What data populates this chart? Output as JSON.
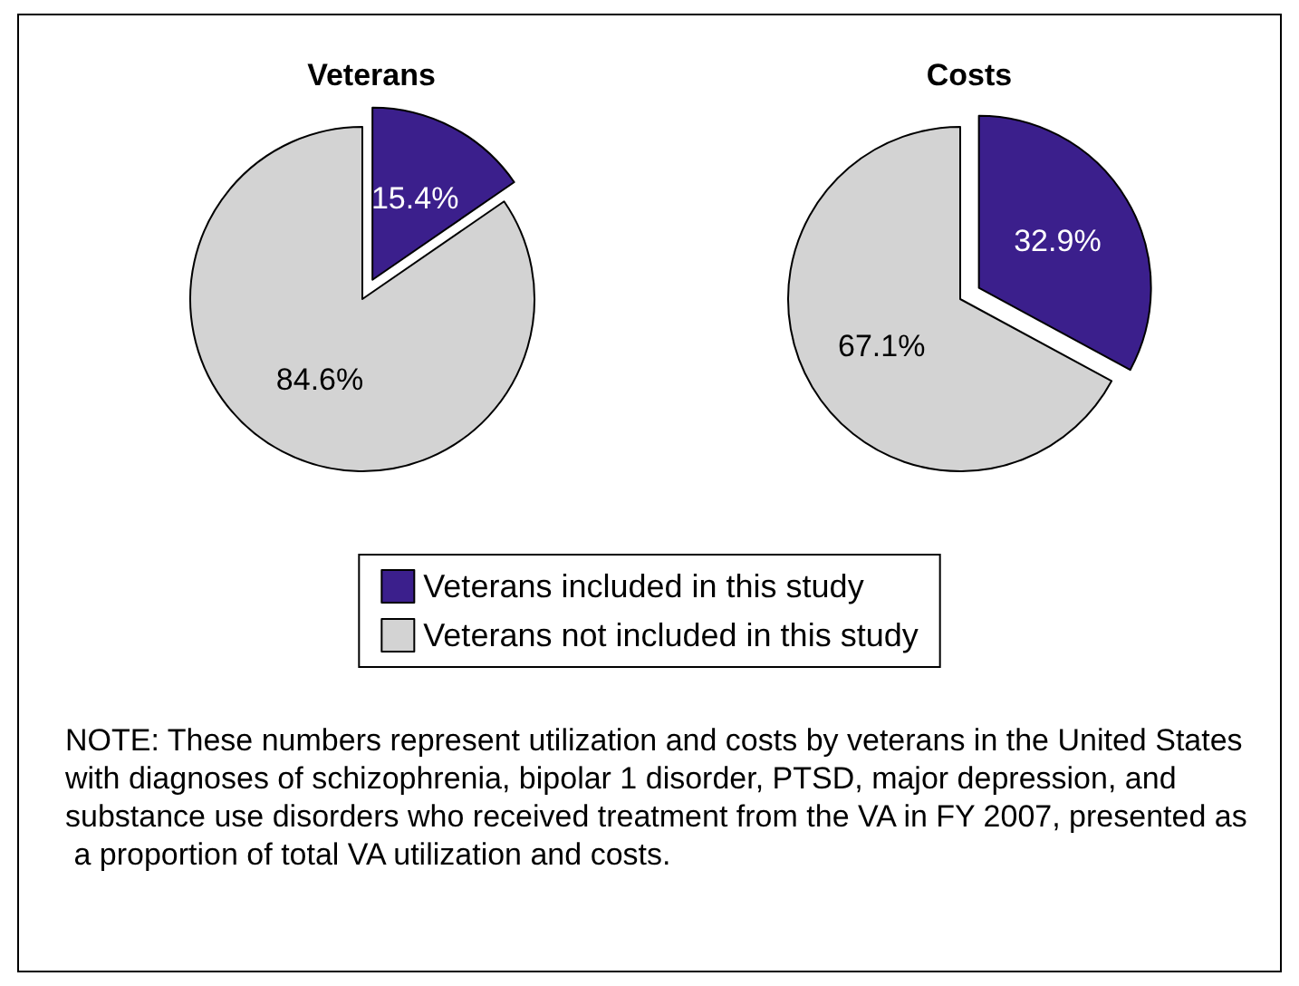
{
  "chart_data": {
    "type": "pie",
    "categories": [
      "Veterans included in this study",
      "Veterans not included in this study"
    ],
    "colors": [
      "#3b1f8c",
      "#d3d3d3"
    ],
    "series": [
      {
        "name": "Veterans",
        "values": [
          15.4,
          84.6
        ],
        "value_labels": [
          "15.4%",
          "84.6%"
        ]
      },
      {
        "name": "Costs",
        "values": [
          32.9,
          67.1
        ],
        "value_labels": [
          "32.9%",
          "67.1%"
        ]
      }
    ],
    "legend": "bottom",
    "annotations": [
      "NOTE: These numbers represent utilization and costs by veterans in the United States with diagnoses of schizophrenia, bipolar 1 disorder, PTSD, major depression, and substance use disorders who received treatment from the VA in FY 2007, presented as a proportion of total VA utilization and costs."
    ]
  }
}
